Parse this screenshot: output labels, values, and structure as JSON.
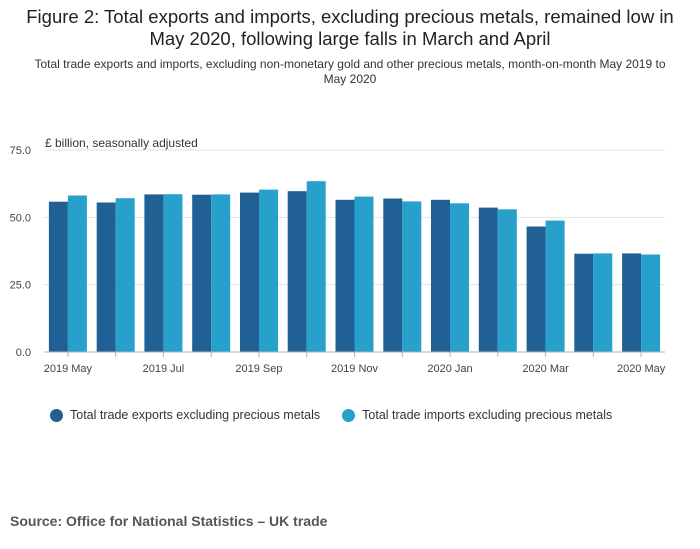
{
  "title": "Figure 2: Total exports and imports, excluding precious metals, remained low in May 2020, following large falls in March and April",
  "subtitle": "Total trade exports and imports, excluding non-monetary gold and other precious metals, month-on-month May 2019 to May 2020",
  "source": "Source: Office for National Statistics – UK trade",
  "colors": {
    "exports": "#206095",
    "imports": "#27a0cc",
    "grid": "#e2e2e2",
    "axis": "#b3b3b3"
  },
  "chart_data": {
    "type": "bar",
    "ylabel": "£ billion, seasonally adjusted",
    "ylim": [
      0,
      75
    ],
    "yticks": [
      "75.0",
      "50.0",
      "25.0",
      "0.0"
    ],
    "ytick_values": [
      75,
      50,
      25,
      0
    ],
    "categories": [
      "2019 May",
      "2019 Jun",
      "2019 Jul",
      "2019 Aug",
      "2019 Sep",
      "2019 Oct",
      "2019 Nov",
      "2019 Dec",
      "2020 Jan",
      "2020 Feb",
      "2020 Mar",
      "2020 Apr",
      "2020 May"
    ],
    "xtick_labels": [
      "2019 May",
      "",
      "2019 Jul",
      "",
      "2019 Sep",
      "",
      "2019 Nov",
      "",
      "2020 Jan",
      "",
      "2020 Mar",
      "",
      "2020 May"
    ],
    "grid": true,
    "legend_position": "bottom",
    "series": [
      {
        "name": "Total trade exports excluding precious metals",
        "values": [
          55.8,
          55.5,
          58.5,
          58.4,
          59.2,
          59.7,
          56.5,
          57.0,
          56.5,
          53.6,
          46.6,
          36.5,
          36.6
        ]
      },
      {
        "name": "Total trade imports excluding precious metals",
        "values": [
          58.1,
          57.1,
          58.6,
          58.5,
          60.3,
          63.4,
          57.7,
          55.9,
          55.2,
          53.0,
          48.8,
          36.6,
          36.2
        ]
      }
    ]
  }
}
